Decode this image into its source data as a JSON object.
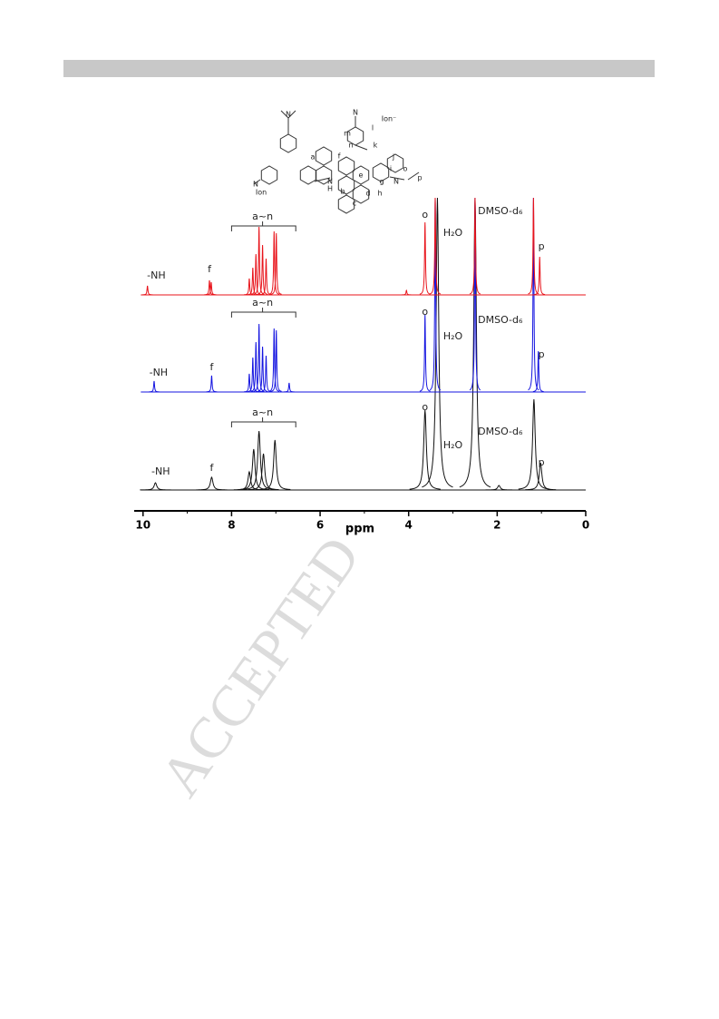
{
  "chart_data": {
    "type": "nmr",
    "x_label": "ppm",
    "xlim": [
      10.2,
      0
    ],
    "xticks": [
      10,
      8,
      6,
      4,
      2,
      0
    ],
    "series": [
      {
        "color": "#e8141b",
        "x": [
          9.9,
          8.5,
          8.46,
          7.6,
          7.52,
          7.45,
          7.38,
          7.3,
          7.22,
          7.04,
          6.99,
          4.05,
          3.63,
          3.4,
          2.5,
          1.18,
          1.04
        ],
        "values": [
          10,
          16,
          14,
          18,
          30,
          45,
          75,
          55,
          40,
          70,
          68,
          5,
          80,
          107,
          107,
          107,
          42
        ],
        "annotations": [
          {
            "text": "-NH",
            "x": 9.7,
            "y": 21
          },
          {
            "text": "f",
            "x": 8.5,
            "y": 28
          },
          {
            "text": "a~n",
            "x": 7.3,
            "y": 86,
            "bracket": [
              8.0,
              6.55
            ]
          },
          {
            "text": "o",
            "x": 3.63,
            "y": 88
          },
          {
            "text": "H₂O",
            "x": 3.0,
            "y": 68
          },
          {
            "text": "DMSO-d₆",
            "x": 1.93,
            "y": 92
          },
          {
            "text": "p",
            "x": 1.0,
            "y": 53
          }
        ]
      },
      {
        "color": "#1414e0",
        "x": [
          9.75,
          8.45,
          7.6,
          7.52,
          7.45,
          7.38,
          7.3,
          7.22,
          7.04,
          6.99,
          6.7,
          3.63,
          3.4,
          2.5,
          1.18,
          1.07
        ],
        "values": [
          12,
          18,
          20,
          38,
          55,
          75,
          50,
          40,
          70,
          68,
          10,
          85,
          214,
          214,
          214,
          45
        ],
        "annotations": [
          {
            "text": "-NH",
            "x": 9.65,
            "y": 21
          },
          {
            "text": "f",
            "x": 8.45,
            "y": 27
          },
          {
            "text": "a~n",
            "x": 7.3,
            "y": 98,
            "bracket": [
              8.0,
              6.55
            ]
          },
          {
            "text": "o",
            "x": 3.63,
            "y": 88
          },
          {
            "text": "H₂O",
            "x": 3.0,
            "y": 61
          },
          {
            "text": "DMSO-d₆",
            "x": 1.93,
            "y": 79
          },
          {
            "text": "p",
            "x": 1.0,
            "y": 41
          }
        ]
      },
      {
        "color": "#111111",
        "x": [
          9.72,
          8.45,
          7.6,
          7.5,
          7.38,
          7.28,
          7.02,
          3.63,
          3.35,
          2.5,
          1.96,
          1.17,
          1.02
        ],
        "values": [
          8,
          14,
          20,
          45,
          65,
          40,
          55,
          88,
          322,
          322,
          5,
          100,
          30
        ],
        "annotations": [
          {
            "text": "-NH",
            "x": 9.6,
            "y": 20
          },
          {
            "text": "f",
            "x": 8.45,
            "y": 24
          },
          {
            "text": "a~n",
            "x": 7.3,
            "y": 85,
            "bracket": [
              8.0,
              6.55
            ]
          },
          {
            "text": "o",
            "x": 3.63,
            "y": 91
          },
          {
            "text": "H₂O",
            "x": 3.0,
            "y": 49
          },
          {
            "text": "DMSO-d₆",
            "x": 1.93,
            "y": 64
          },
          {
            "text": "p",
            "x": 1.0,
            "y": 30
          }
        ]
      }
    ]
  },
  "structure": {
    "labels": [
      "N",
      "N",
      "Ion",
      "N",
      "H",
      "a",
      "b",
      "c",
      "d",
      "e",
      "f",
      "g",
      "h",
      "i",
      "j",
      "k",
      "l",
      "m",
      "n",
      "N",
      "Ion⁻",
      "N",
      "o",
      "p"
    ]
  },
  "watermark": "ACCEPTED"
}
